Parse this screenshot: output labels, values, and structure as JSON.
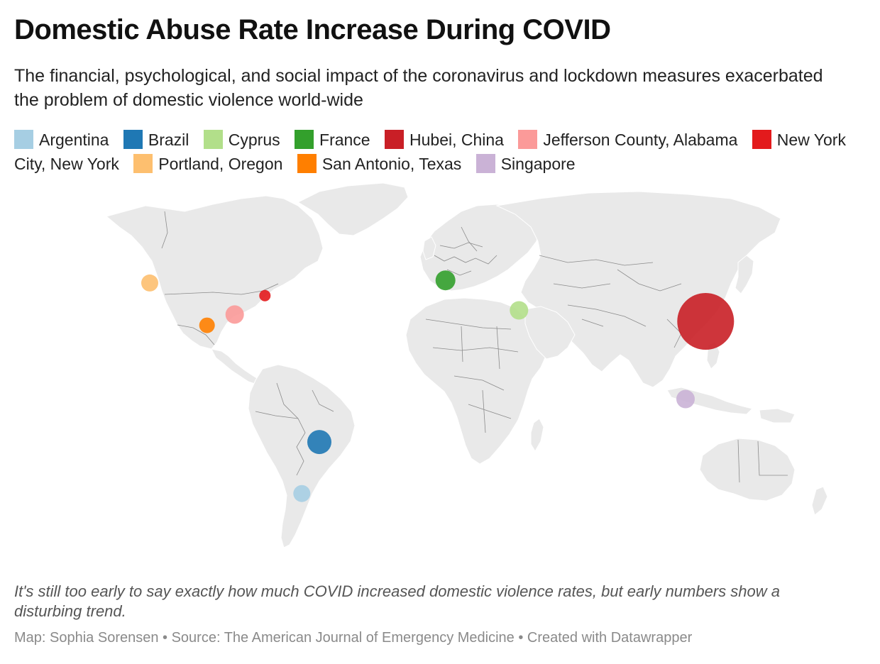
{
  "header": {
    "title": "Domestic Abuse Rate Increase During COVID",
    "subtitle": "The financial, psychological, and social impact of the coronavirus and lockdown measures exacerbated the problem of domestic violence world-wide"
  },
  "legend": {
    "items": [
      {
        "label": "Argentina",
        "color": "#a6cee3"
      },
      {
        "label": "Brazil",
        "color": "#1f78b4"
      },
      {
        "label": "Cyprus",
        "color": "#b2df8a"
      },
      {
        "label": "France",
        "color": "#33a02c"
      },
      {
        "label": "Hubei, China",
        "color": "#c91f26"
      },
      {
        "label": "Jefferson County, Alabama",
        "color": "#fb9a99"
      },
      {
        "label": "New York City, New York",
        "color": "#e31a1c"
      },
      {
        "label": "Portland, Oregon",
        "color": "#fdbf6f"
      },
      {
        "label": "San Antonio, Texas",
        "color": "#ff7f00"
      },
      {
        "label": "Singapore",
        "color": "#cab2d6"
      }
    ]
  },
  "map": {
    "land_color": "#e9e9e9",
    "border_color": "#8a8a8a",
    "markers": [
      {
        "name": "Argentina",
        "color": "#a6cee3",
        "lon": -58.4,
        "lat": -34.6,
        "relative_size": 12
      },
      {
        "name": "Brazil",
        "color": "#1f78b4",
        "lon": -51.0,
        "lat": -15.0,
        "relative_size": 17
      },
      {
        "name": "Cyprus",
        "color": "#b2df8a",
        "lon": 33.4,
        "lat": 35.1,
        "relative_size": 13
      },
      {
        "name": "France",
        "color": "#33a02c",
        "lon": 2.3,
        "lat": 46.5,
        "relative_size": 14
      },
      {
        "name": "Hubei, China",
        "color": "#c91f26",
        "lon": 112.3,
        "lat": 30.9,
        "relative_size": 40
      },
      {
        "name": "Jefferson County, Alabama",
        "color": "#fb9a99",
        "lon": -86.8,
        "lat": 33.5,
        "relative_size": 13
      },
      {
        "name": "New York City, New York",
        "color": "#e31a1c",
        "lon": -74.0,
        "lat": 40.7,
        "relative_size": 8
      },
      {
        "name": "Portland, Oregon",
        "color": "#fdbf6f",
        "lon": -122.7,
        "lat": 45.5,
        "relative_size": 12
      },
      {
        "name": "San Antonio, Texas",
        "color": "#ff7f00",
        "lon": -98.5,
        "lat": 29.4,
        "relative_size": 11
      },
      {
        "name": "Singapore",
        "color": "#cab2d6",
        "lon": 103.8,
        "lat": 1.35,
        "relative_size": 13
      }
    ]
  },
  "notes": "It's still too early to say exactly how much COVID increased domestic violence rates, but early numbers show a disturbing trend.",
  "footer": "Map: Sophia Sorensen • Source: The American Journal of Emergency Medicine • Created with Datawrapper"
}
